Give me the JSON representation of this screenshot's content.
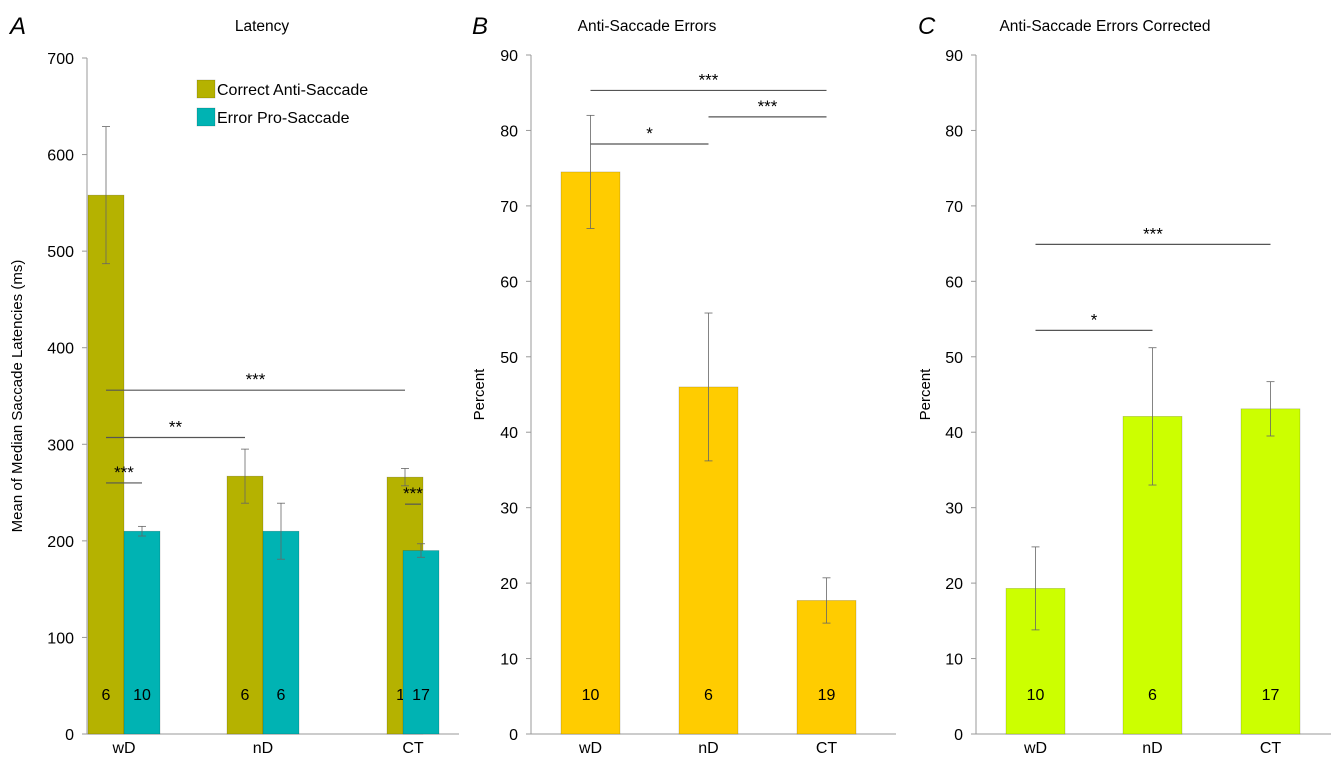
{
  "chart_data": [
    {
      "panel_letter": "A",
      "type": "bar",
      "title": "Latency",
      "ylabel": "Mean of Median Saccade Latencies (ms)",
      "xlabel": "",
      "ylim": [
        0,
        700
      ],
      "yticks": [
        0,
        100,
        200,
        300,
        400,
        500,
        600,
        700
      ],
      "grid": false,
      "legend_position": "top-right",
      "categories": [
        "wD",
        "nD",
        "CT"
      ],
      "series": [
        {
          "name": "Correct Anti-Saccade",
          "color": "#b5b200",
          "values": [
            558,
            267,
            266
          ],
          "errors": [
            71,
            28,
            9
          ],
          "n": [
            "6",
            "6",
            "19"
          ]
        },
        {
          "name": "Error Pro-Saccade",
          "color": "#00b3b3",
          "values": [
            210,
            210,
            190
          ],
          "errors": [
            5,
            29,
            7
          ],
          "n": [
            "10",
            "6",
            "17"
          ]
        }
      ],
      "significance": [
        {
          "label": "***",
          "y": 356,
          "from": "wD/0",
          "to": "CT/0"
        },
        {
          "label": "**",
          "y": 307,
          "from": "wD/0",
          "to": "nD/0"
        },
        {
          "label": "***",
          "y": 260,
          "from": "wD/0",
          "to": "wD/1"
        },
        {
          "label": "***",
          "y": 238,
          "from": "CT/0",
          "to": "CT/1"
        }
      ]
    },
    {
      "panel_letter": "B",
      "type": "bar",
      "title": "Anti-Saccade Errors",
      "ylabel": "Percent",
      "xlabel": "",
      "ylim": [
        0,
        90
      ],
      "yticks": [
        0,
        10,
        20,
        30,
        40,
        50,
        60,
        70,
        80,
        90
      ],
      "grid": false,
      "categories": [
        "wD",
        "nD",
        "CT"
      ],
      "series": [
        {
          "name": "",
          "color": "#ffcc00",
          "values": [
            74.5,
            46,
            17.7
          ],
          "errors": [
            7.5,
            9.8,
            3
          ],
          "n": [
            "10",
            "6",
            "19"
          ]
        }
      ],
      "significance": [
        {
          "label": "***",
          "y": 85.3,
          "from": "wD/0",
          "to": "CT/0"
        },
        {
          "label": "***",
          "y": 81.8,
          "from": "nD/0",
          "to": "CT/0"
        },
        {
          "label": "*",
          "y": 78.2,
          "from": "wD/0",
          "to": "nD/0"
        }
      ]
    },
    {
      "panel_letter": "C",
      "type": "bar",
      "title": "Anti-Saccade Errors Corrected",
      "ylabel": "Percent",
      "xlabel": "",
      "ylim": [
        0,
        90
      ],
      "yticks": [
        0,
        10,
        20,
        30,
        40,
        50,
        60,
        70,
        80,
        90
      ],
      "grid": false,
      "categories": [
        "wD",
        "nD",
        "CT"
      ],
      "series": [
        {
          "name": "",
          "color": "#ccff00",
          "values": [
            19.3,
            42.1,
            43.1
          ],
          "errors": [
            5.5,
            9.1,
            3.6
          ],
          "n": [
            "10",
            "6",
            "17"
          ]
        }
      ],
      "significance": [
        {
          "label": "***",
          "y": 64.9,
          "from": "wD/0",
          "to": "CT/0"
        },
        {
          "label": "*",
          "y": 53.5,
          "from": "wD/0",
          "to": "nD/0"
        }
      ]
    }
  ]
}
